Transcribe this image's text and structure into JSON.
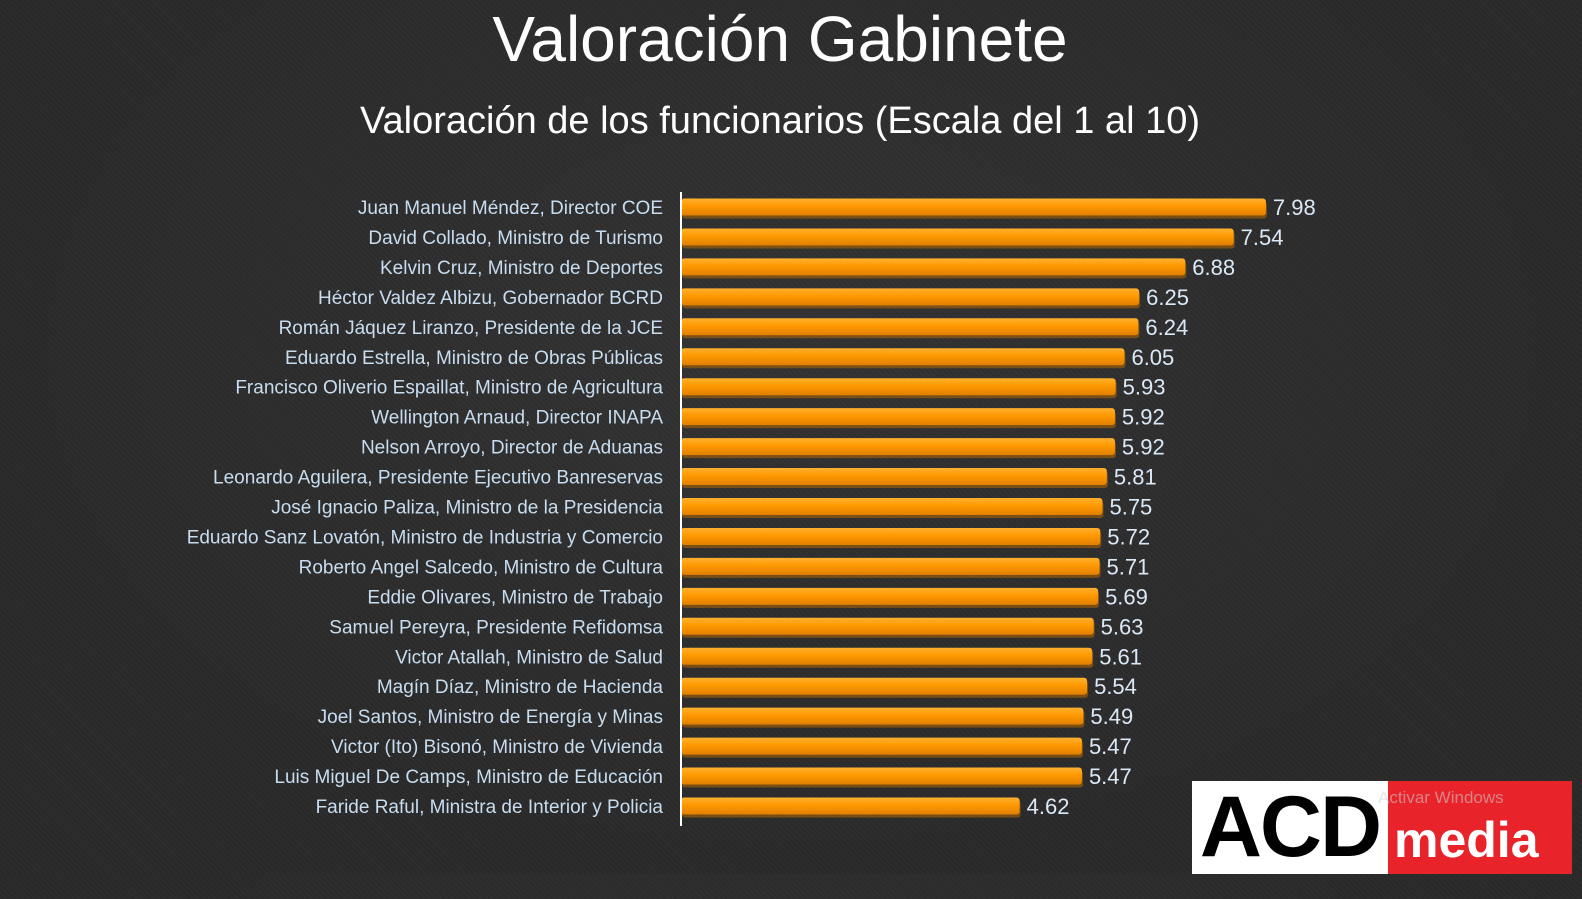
{
  "title": "Valoración Gabinete",
  "subtitle": "Valoración de los funcionarios (Escala del 1 al 10)",
  "colors": {
    "bar": "#ff9900",
    "bar_shadow": "#b86a00",
    "label": "#c8ddf0",
    "value_label": "#dbe9f7",
    "axis": "#ffffff",
    "logo_red": "#e8232a"
  },
  "chart_data": {
    "type": "bar",
    "orientation": "horizontal",
    "categories": [
      "Juan Manuel Méndez, Director COE",
      "David Collado, Ministro de Turismo",
      "Kelvin Cruz, Ministro de Deportes",
      "Héctor Valdez Albizu, Gobernador BCRD",
      "Román Jáquez Liranzo, Presidente de la JCE",
      "Eduardo Estrella, Ministro de Obras Públicas",
      "Francisco Oliverio Espaillat, Ministro de Agricultura",
      "Wellington Arnaud, Director INAPA",
      "Nelson Arroyo, Director de Aduanas",
      "Leonardo Aguilera, Presidente Ejecutivo Banreservas",
      "José Ignacio Paliza, Ministro de la Presidencia",
      "Eduardo Sanz Lovatón, Ministro de Industria y Comercio",
      "Roberto Angel Salcedo, Ministro de Cultura",
      "Eddie Olivares, Ministro de Trabajo",
      "Samuel Pereyra, Presidente Refidomsa",
      "Victor Atallah, Ministro de Salud",
      "Magín Díaz, Ministro de Hacienda",
      "Joel Santos, Ministro de Energía y Minas",
      "Victor (Ito) Bisonó, Ministro de Vivienda",
      "Luis Miguel De Camps, Ministro de Educación",
      "Faride Raful, Ministra de Interior y Policia"
    ],
    "values": [
      7.98,
      7.54,
      6.88,
      6.25,
      6.24,
      6.05,
      5.93,
      5.92,
      5.92,
      5.81,
      5.75,
      5.72,
      5.71,
      5.69,
      5.63,
      5.61,
      5.54,
      5.49,
      5.47,
      5.47,
      4.62
    ],
    "value_labels": [
      "7.98",
      "7.54",
      "6.88",
      "6.25",
      "6.24",
      "6.05",
      "5.93",
      "5.92",
      "5.92",
      "5.81",
      "5.75",
      "5.72",
      "5.71",
      "5.69",
      "5.63",
      "5.61",
      "5.54",
      "5.49",
      "5.47",
      "5.47",
      "4.62"
    ],
    "xlim": [
      0,
      8
    ],
    "grid": false,
    "legend": "none"
  },
  "logo": {
    "part1": "ACD",
    "part2": "media"
  },
  "watermark": {
    "line1": "Activar Windows"
  }
}
